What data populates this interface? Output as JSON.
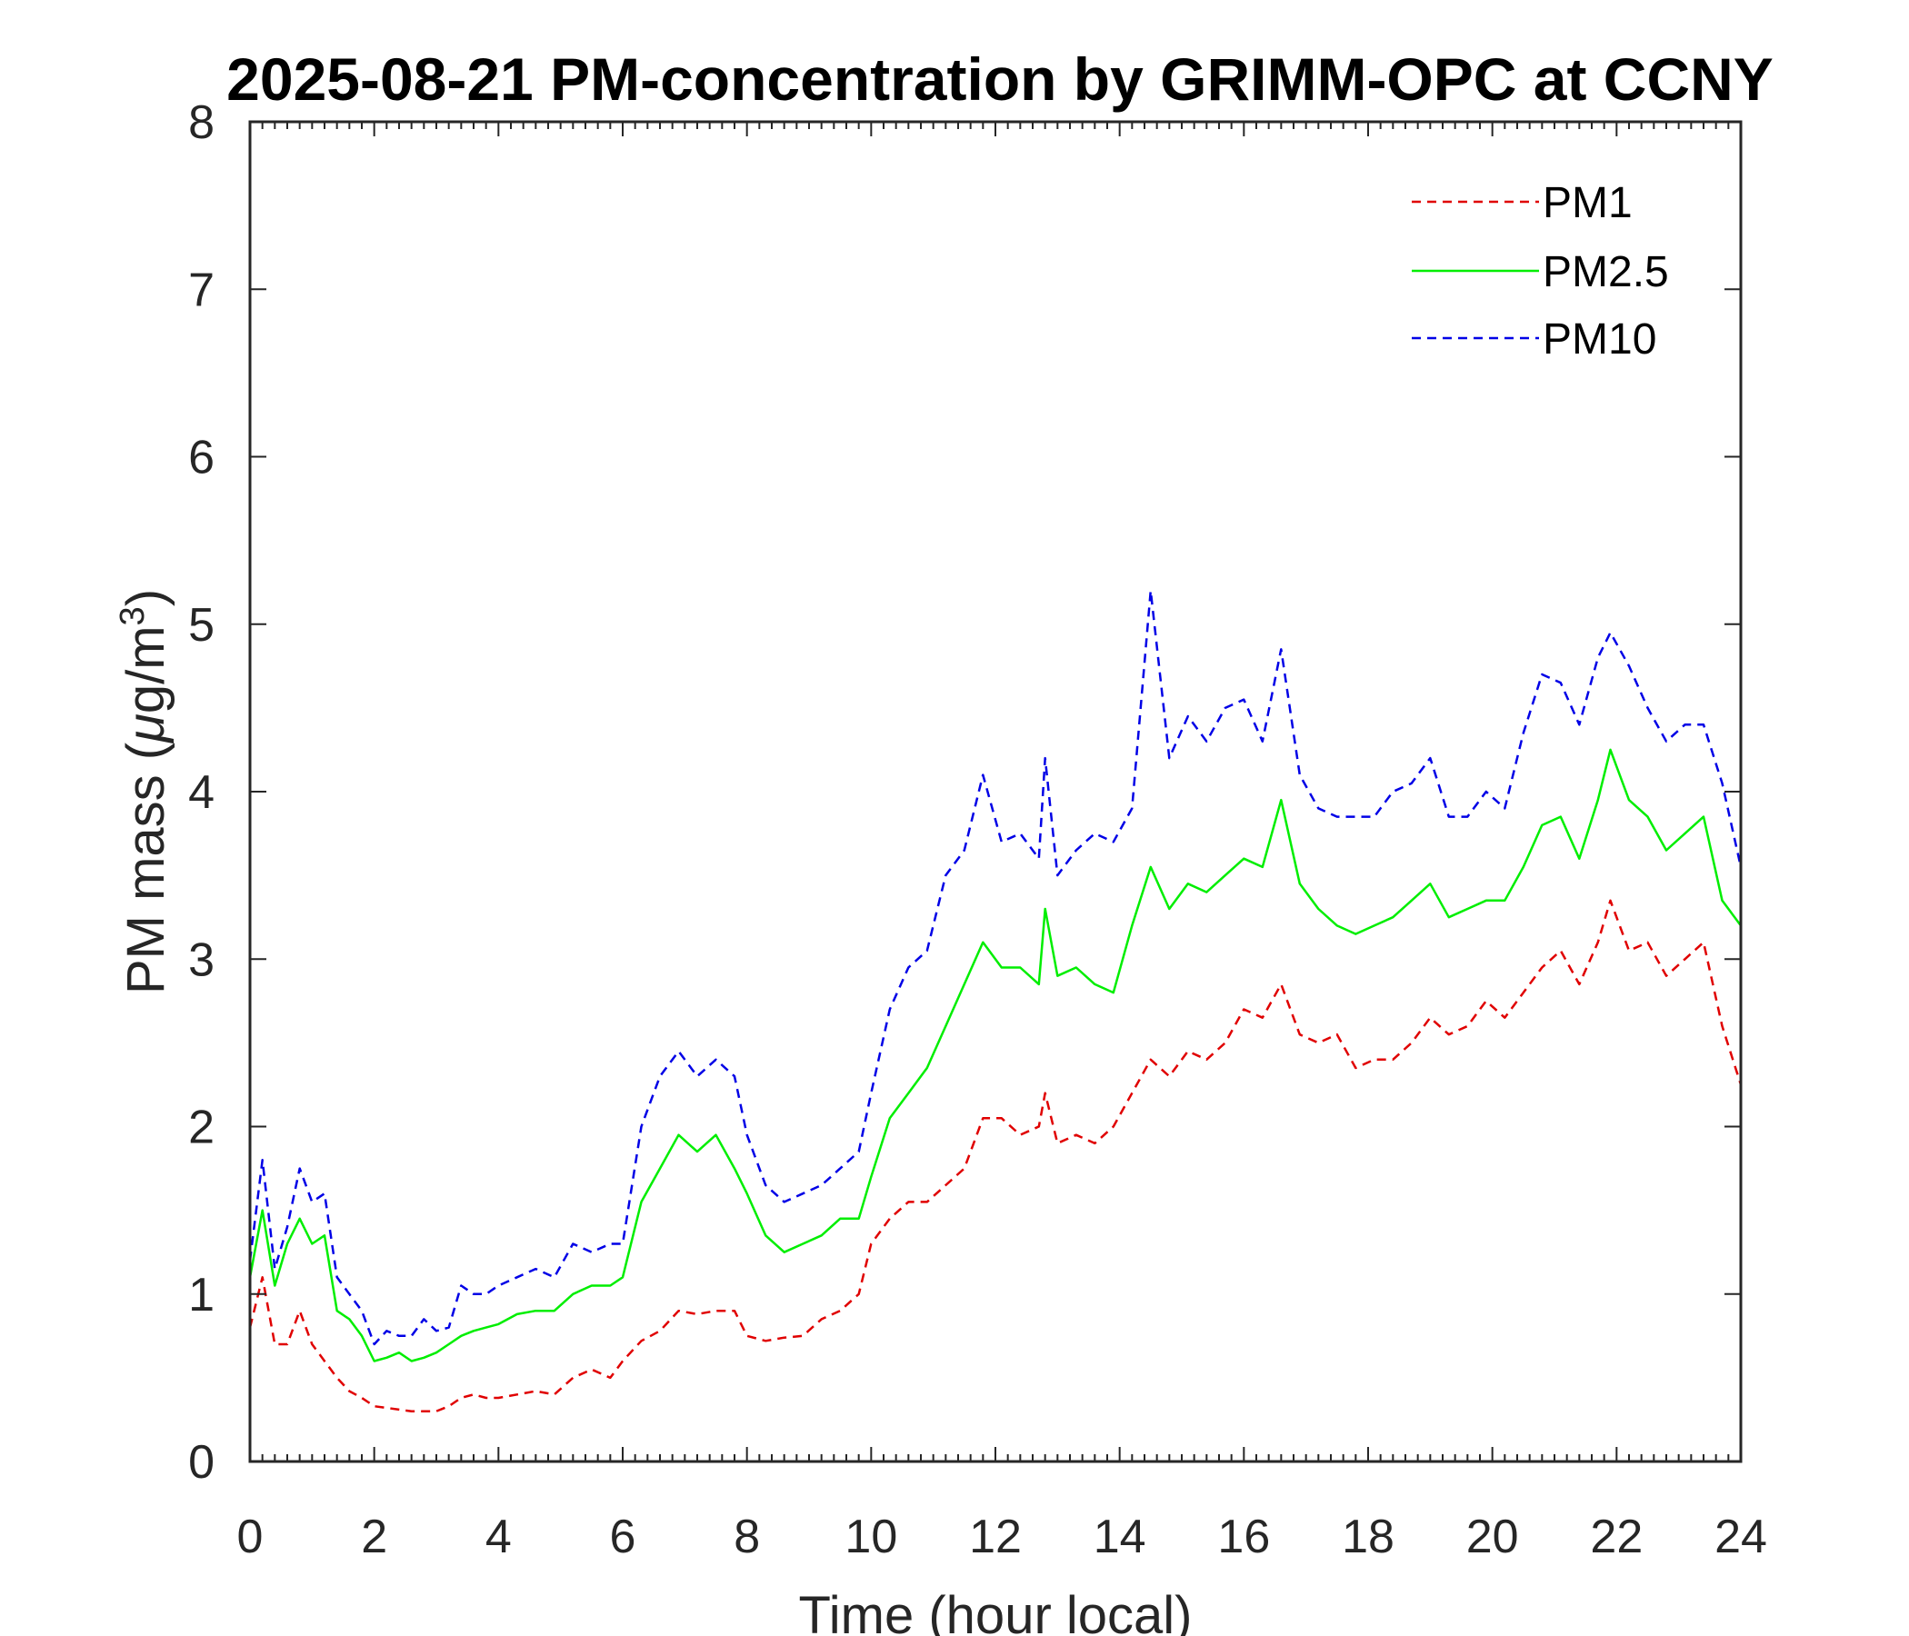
{
  "chart_data": {
    "type": "line",
    "title": "2025-08-21 PM-concentration by GRIMM-OPC at CCNY",
    "xlabel": "Time (hour local)",
    "ylabel": {
      "prefix": "PM mass (",
      "mu": "μ",
      "unit": "g/m",
      "sup": "3",
      "suffix": ")"
    },
    "xlim": [
      0,
      24
    ],
    "ylim": [
      0,
      8
    ],
    "xticks": [
      0,
      2,
      4,
      6,
      8,
      10,
      12,
      14,
      16,
      18,
      20,
      22,
      24
    ],
    "yticks": [
      0,
      1,
      2,
      3,
      4,
      5,
      6,
      7,
      8
    ],
    "legend_position": "top-right",
    "series": [
      {
        "name": "PM1",
        "color": "#e00000",
        "dash": "dashed",
        "x": [
          0,
          0.2,
          0.4,
          0.6,
          0.8,
          1.0,
          1.2,
          1.4,
          1.6,
          1.8,
          2.0,
          2.2,
          2.4,
          2.6,
          2.8,
          3.0,
          3.2,
          3.4,
          3.6,
          3.8,
          4.0,
          4.3,
          4.6,
          4.9,
          5.2,
          5.5,
          5.8,
          6.0,
          6.3,
          6.6,
          6.9,
          7.2,
          7.5,
          7.8,
          8.0,
          8.3,
          8.6,
          8.9,
          9.2,
          9.5,
          9.8,
          10.0,
          10.3,
          10.6,
          10.9,
          11.2,
          11.5,
          11.8,
          12.1,
          12.4,
          12.7,
          12.8,
          13.0,
          13.3,
          13.6,
          13.9,
          14.2,
          14.5,
          14.8,
          15.1,
          15.4,
          15.7,
          16.0,
          16.3,
          16.6,
          16.9,
          17.2,
          17.5,
          17.8,
          18.1,
          18.4,
          18.7,
          19.0,
          19.3,
          19.6,
          19.9,
          20.2,
          20.5,
          20.8,
          21.1,
          21.4,
          21.7,
          21.9,
          22.2,
          22.5,
          22.8,
          23.1,
          23.4,
          23.7,
          24.0
        ],
        "values": [
          0.8,
          1.1,
          0.7,
          0.7,
          0.9,
          0.7,
          0.6,
          0.5,
          0.42,
          0.38,
          0.33,
          0.32,
          0.31,
          0.3,
          0.3,
          0.3,
          0.33,
          0.38,
          0.4,
          0.38,
          0.38,
          0.4,
          0.42,
          0.4,
          0.5,
          0.55,
          0.5,
          0.6,
          0.72,
          0.78,
          0.9,
          0.88,
          0.9,
          0.9,
          0.75,
          0.72,
          0.74,
          0.75,
          0.85,
          0.9,
          1.0,
          1.3,
          1.45,
          1.55,
          1.55,
          1.65,
          1.75,
          2.05,
          2.05,
          1.95,
          2.0,
          2.2,
          1.9,
          1.95,
          1.9,
          2.0,
          2.2,
          2.4,
          2.3,
          2.45,
          2.4,
          2.5,
          2.7,
          2.65,
          2.85,
          2.55,
          2.5,
          2.55,
          2.35,
          2.4,
          2.4,
          2.5,
          2.65,
          2.55,
          2.6,
          2.75,
          2.65,
          2.8,
          2.95,
          3.05,
          2.85,
          3.1,
          3.35,
          3.05,
          3.1,
          2.9,
          3.0,
          3.1,
          2.6,
          2.25
        ]
      },
      {
        "name": "PM2.5",
        "color": "#00ee00",
        "dash": "solid",
        "x": [
          0,
          0.2,
          0.4,
          0.6,
          0.8,
          1.0,
          1.2,
          1.4,
          1.6,
          1.8,
          2.0,
          2.2,
          2.4,
          2.6,
          2.8,
          3.0,
          3.2,
          3.4,
          3.6,
          3.8,
          4.0,
          4.3,
          4.6,
          4.9,
          5.2,
          5.5,
          5.8,
          6.0,
          6.3,
          6.6,
          6.9,
          7.2,
          7.5,
          7.8,
          8.0,
          8.3,
          8.6,
          8.9,
          9.2,
          9.5,
          9.8,
          10.0,
          10.3,
          10.6,
          10.9,
          11.2,
          11.5,
          11.8,
          12.1,
          12.4,
          12.7,
          12.8,
          13.0,
          13.3,
          13.6,
          13.9,
          14.2,
          14.5,
          14.8,
          15.1,
          15.4,
          15.7,
          16.0,
          16.3,
          16.6,
          16.9,
          17.2,
          17.5,
          17.8,
          18.1,
          18.4,
          18.7,
          19.0,
          19.3,
          19.6,
          19.9,
          20.2,
          20.5,
          20.8,
          21.1,
          21.4,
          21.7,
          21.9,
          22.2,
          22.5,
          22.8,
          23.1,
          23.4,
          23.7,
          24.0
        ],
        "values": [
          1.1,
          1.5,
          1.05,
          1.3,
          1.45,
          1.3,
          1.35,
          0.9,
          0.85,
          0.75,
          0.6,
          0.62,
          0.65,
          0.6,
          0.62,
          0.65,
          0.7,
          0.75,
          0.78,
          0.8,
          0.82,
          0.88,
          0.9,
          0.9,
          1.0,
          1.05,
          1.05,
          1.1,
          1.55,
          1.75,
          1.95,
          1.85,
          1.95,
          1.75,
          1.6,
          1.35,
          1.25,
          1.3,
          1.35,
          1.45,
          1.45,
          1.7,
          2.05,
          2.2,
          2.35,
          2.6,
          2.85,
          3.1,
          2.95,
          2.95,
          2.85,
          3.3,
          2.9,
          2.95,
          2.85,
          2.8,
          3.2,
          3.55,
          3.3,
          3.45,
          3.4,
          3.5,
          3.6,
          3.55,
          3.95,
          3.45,
          3.3,
          3.2,
          3.15,
          3.2,
          3.25,
          3.35,
          3.45,
          3.25,
          3.3,
          3.35,
          3.35,
          3.55,
          3.8,
          3.85,
          3.6,
          3.95,
          4.25,
          3.95,
          3.85,
          3.65,
          3.75,
          3.85,
          3.35,
          3.2
        ]
      },
      {
        "name": "PM10",
        "color": "#0000e6",
        "dash": "dashed",
        "x": [
          0,
          0.2,
          0.4,
          0.6,
          0.8,
          1.0,
          1.2,
          1.4,
          1.6,
          1.8,
          2.0,
          2.2,
          2.4,
          2.6,
          2.8,
          3.0,
          3.2,
          3.4,
          3.6,
          3.8,
          4.0,
          4.3,
          4.6,
          4.9,
          5.2,
          5.5,
          5.8,
          6.0,
          6.3,
          6.6,
          6.9,
          7.2,
          7.5,
          7.8,
          8.0,
          8.3,
          8.6,
          8.9,
          9.2,
          9.5,
          9.8,
          10.0,
          10.3,
          10.6,
          10.9,
          11.2,
          11.5,
          11.8,
          12.1,
          12.4,
          12.7,
          12.8,
          13.0,
          13.3,
          13.6,
          13.9,
          14.2,
          14.5,
          14.8,
          15.1,
          15.4,
          15.7,
          16.0,
          16.3,
          16.6,
          16.9,
          17.2,
          17.5,
          17.8,
          18.1,
          18.4,
          18.7,
          19.0,
          19.3,
          19.6,
          19.9,
          20.2,
          20.5,
          20.8,
          21.1,
          21.4,
          21.7,
          21.9,
          22.2,
          22.5,
          22.8,
          23.1,
          23.4,
          23.7,
          24.0
        ],
        "values": [
          1.2,
          1.8,
          1.15,
          1.4,
          1.75,
          1.55,
          1.6,
          1.1,
          1.0,
          0.9,
          0.7,
          0.78,
          0.75,
          0.75,
          0.85,
          0.78,
          0.8,
          1.05,
          1.0,
          1.0,
          1.05,
          1.1,
          1.15,
          1.1,
          1.3,
          1.25,
          1.3,
          1.3,
          2.0,
          2.3,
          2.45,
          2.3,
          2.4,
          2.3,
          1.95,
          1.65,
          1.55,
          1.6,
          1.65,
          1.75,
          1.85,
          2.2,
          2.7,
          2.95,
          3.05,
          3.5,
          3.65,
          4.1,
          3.7,
          3.75,
          3.6,
          4.2,
          3.5,
          3.65,
          3.75,
          3.7,
          3.9,
          5.2,
          4.2,
          4.45,
          4.3,
          4.5,
          4.55,
          4.3,
          4.85,
          4.1,
          3.9,
          3.85,
          3.85,
          3.85,
          4.0,
          4.05,
          4.2,
          3.85,
          3.85,
          4.0,
          3.9,
          4.35,
          4.7,
          4.65,
          4.4,
          4.8,
          4.95,
          4.75,
          4.5,
          4.3,
          4.4,
          4.4,
          4.05,
          3.55
        ]
      }
    ]
  }
}
